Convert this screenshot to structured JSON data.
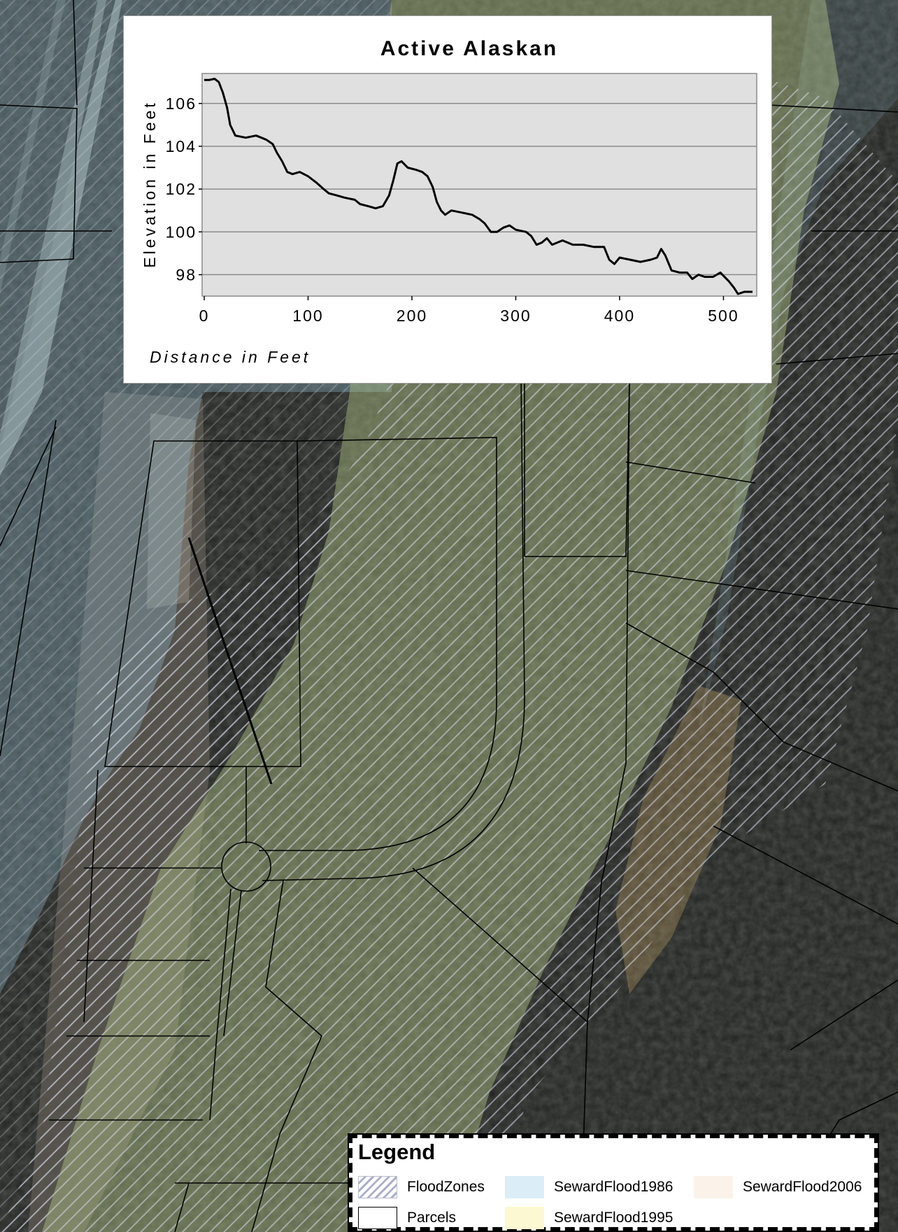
{
  "map": {
    "colors": {
      "imagery_dark": "#202220",
      "imagery_mid": "#3c403a",
      "flood_1986": "#8fb6cc",
      "flood_1995": "#b5c88a",
      "flood_2006": "#c9a86a",
      "flood_hatch": "#c8cde0",
      "parcel_line": "#000000"
    }
  },
  "chart_data": {
    "type": "line",
    "title": "Active Alaskan",
    "xlabel": "Distance in Feet",
    "ylabel": "Elevation in Feet",
    "xlim": [
      0,
      530
    ],
    "ylim": [
      97,
      107.4
    ],
    "xticks": [
      "0",
      "100",
      "200",
      "300",
      "400",
      "500"
    ],
    "yticks": [
      "98",
      "100",
      "102",
      "104",
      "106"
    ],
    "grid": "horizontal",
    "series": [
      {
        "points": [
          [
            0,
            107.1
          ],
          [
            5,
            107.1
          ],
          [
            10,
            107.15
          ],
          [
            14,
            107.0
          ],
          [
            18,
            106.5
          ],
          [
            22,
            105.8
          ],
          [
            25,
            105.0
          ],
          [
            30,
            104.5
          ],
          [
            40,
            104.4
          ],
          [
            50,
            104.5
          ],
          [
            55,
            104.4
          ],
          [
            60,
            104.3
          ],
          [
            66,
            104.1
          ],
          [
            70,
            103.7
          ],
          [
            75,
            103.3
          ],
          [
            80,
            102.8
          ],
          [
            85,
            102.7
          ],
          [
            92,
            102.8
          ],
          [
            100,
            102.6
          ],
          [
            108,
            102.3
          ],
          [
            115,
            102.0
          ],
          [
            120,
            101.8
          ],
          [
            128,
            101.7
          ],
          [
            135,
            101.6
          ],
          [
            145,
            101.5
          ],
          [
            150,
            101.3
          ],
          [
            158,
            101.2
          ],
          [
            165,
            101.1
          ],
          [
            172,
            101.2
          ],
          [
            178,
            101.7
          ],
          [
            182,
            102.4
          ],
          [
            186,
            103.2
          ],
          [
            190,
            103.3
          ],
          [
            196,
            103.0
          ],
          [
            204,
            102.9
          ],
          [
            210,
            102.8
          ],
          [
            215,
            102.6
          ],
          [
            220,
            102.1
          ],
          [
            224,
            101.4
          ],
          [
            228,
            101.0
          ],
          [
            232,
            100.8
          ],
          [
            238,
            101.0
          ],
          [
            248,
            100.9
          ],
          [
            258,
            100.8
          ],
          [
            265,
            100.6
          ],
          [
            270,
            100.4
          ],
          [
            276,
            100.0
          ],
          [
            282,
            100.0
          ],
          [
            288,
            100.2
          ],
          [
            294,
            100.3
          ],
          [
            300,
            100.1
          ],
          [
            310,
            100.0
          ],
          [
            315,
            99.8
          ],
          [
            320,
            99.4
          ],
          [
            325,
            99.5
          ],
          [
            330,
            99.7
          ],
          [
            335,
            99.4
          ],
          [
            345,
            99.6
          ],
          [
            355,
            99.4
          ],
          [
            365,
            99.4
          ],
          [
            375,
            99.3
          ],
          [
            385,
            99.3
          ],
          [
            390,
            98.7
          ],
          [
            395,
            98.5
          ],
          [
            400,
            98.8
          ],
          [
            410,
            98.7
          ],
          [
            420,
            98.6
          ],
          [
            430,
            98.7
          ],
          [
            436,
            98.8
          ],
          [
            440,
            99.2
          ],
          [
            444,
            98.9
          ],
          [
            450,
            98.2
          ],
          [
            458,
            98.1
          ],
          [
            465,
            98.1
          ],
          [
            470,
            97.8
          ],
          [
            476,
            98.0
          ],
          [
            482,
            97.9
          ],
          [
            490,
            97.9
          ],
          [
            497,
            98.1
          ],
          [
            505,
            97.7
          ],
          [
            510,
            97.4
          ],
          [
            514,
            97.1
          ],
          [
            520,
            97.2
          ],
          [
            528,
            97.2
          ]
        ]
      }
    ]
  },
  "legend": {
    "title": "Legend",
    "items": [
      {
        "key": "floodzones",
        "label": "FloodZones"
      },
      {
        "key": "flood1986",
        "label": "SewardFlood1986"
      },
      {
        "key": "flood2006",
        "label": "SewardFlood2006"
      },
      {
        "key": "parcels",
        "label": "Parcels"
      },
      {
        "key": "flood1995",
        "label": "SewardFlood1995"
      }
    ]
  }
}
